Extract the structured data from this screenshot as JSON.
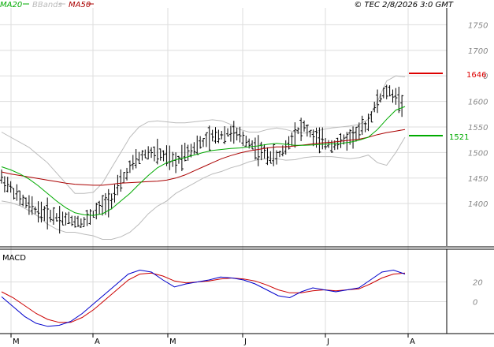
{
  "legend": {
    "ma20": {
      "label": "MA20",
      "color": "#00aa00"
    },
    "bbands": {
      "label": "BBands",
      "color": "#bbbbbb"
    },
    "ma50": {
      "label": "MA50",
      "color": "#aa0000"
    }
  },
  "copyright": "© TEC 2/8/2026 3:0 GMT",
  "macd_label": "MACD",
  "level_labels": {
    "resistance": "1646",
    "support": "1521"
  },
  "colors": {
    "candle": "#000000",
    "resistance": "#dd0000",
    "support": "#00aa00",
    "macd_line": "#0000cc",
    "signal_line": "#cc0000",
    "grid": "#dddddd"
  },
  "chart_data": [
    {
      "type": "bar",
      "title": "",
      "ylim": [
        1320,
        1780
      ],
      "y_ticks": [
        "1750",
        "1700",
        "1650",
        "1600",
        "1550",
        "1500",
        "1450",
        "1400"
      ],
      "x_ticks": [
        "M",
        "A",
        "M",
        "J",
        "J",
        "A"
      ],
      "grid": true,
      "series": [
        {
          "name": "MA20",
          "values": [
            1472,
            1466,
            1458,
            1448,
            1435,
            1420,
            1405,
            1392,
            1382,
            1378,
            1377,
            1380,
            1390,
            1405,
            1420,
            1438,
            1455,
            1470,
            1480,
            1486,
            1490,
            1495,
            1500,
            1504,
            1506,
            1508,
            1509,
            1511,
            1513,
            1516,
            1518,
            1516,
            1514,
            1514,
            1515,
            1516,
            1517,
            1518,
            1520,
            1524,
            1530,
            1545,
            1565,
            1583,
            1590
          ]
        },
        {
          "name": "MA50",
          "values": [
            1462,
            1458,
            1455,
            1452,
            1449,
            1446,
            1443,
            1440,
            1438,
            1437,
            1436,
            1436,
            1438,
            1440,
            1441,
            1442,
            1443,
            1444,
            1446,
            1450,
            1456,
            1464,
            1472,
            1480,
            1488,
            1494,
            1499,
            1503,
            1506,
            1509,
            1511,
            1511,
            1513,
            1515,
            1517,
            1519,
            1520,
            1522,
            1524,
            1526,
            1530,
            1535,
            1539,
            1542,
            1545
          ]
        },
        {
          "name": "BBands",
          "values": [
            1540,
            1530,
            1520,
            1510,
            1495,
            1480,
            1460,
            1440,
            1420,
            1420,
            1422,
            1440,
            1470,
            1500,
            1530,
            1550,
            1560,
            1562,
            1560,
            1558,
            1558,
            1560,
            1562,
            1564,
            1562,
            1555,
            1545,
            1540,
            1540,
            1545,
            1548,
            1545,
            1540,
            1538,
            1540,
            1545,
            1548,
            1550,
            1552,
            1555,
            1565,
            1600,
            1640,
            1650,
            1648
          ]
        },
        {
          "name": "BBands",
          "values": [
            1405,
            1402,
            1396,
            1386,
            1375,
            1360,
            1350,
            1344,
            1344,
            1340,
            1337,
            1330,
            1330,
            1335,
            1344,
            1360,
            1380,
            1395,
            1405,
            1420,
            1430,
            1440,
            1450,
            1458,
            1463,
            1470,
            1475,
            1482,
            1486,
            1488,
            1488,
            1485,
            1486,
            1490,
            1492,
            1492,
            1492,
            1490,
            1488,
            1490,
            1495,
            1480,
            1475,
            1500,
            1530
          ]
        },
        {
          "name": "",
          "values": [
            1450,
            1430,
            1410,
            1395,
            1385,
            1380,
            1374,
            1370,
            1366,
            1364,
            1380,
            1395,
            1410,
            1440,
            1470,
            1490,
            1500,
            1498,
            1490,
            1480,
            1500,
            1510,
            1520,
            1530,
            1535,
            1540,
            1530,
            1520,
            1505,
            1495,
            1490,
            1510,
            1540,
            1550,
            1530,
            1520,
            1515,
            1520,
            1530,
            1540,
            1560,
            1600,
            1620,
            1610,
            1590
          ]
        }
      ]
    },
    {
      "type": "line",
      "title": "MACD",
      "ylim": [
        -30,
        50
      ],
      "y_ticks": [
        "20",
        "0"
      ],
      "series": [
        {
          "name": "",
          "values": [
            5,
            -5,
            -15,
            -22,
            -25,
            -24,
            -20,
            -12,
            -2,
            8,
            18,
            28,
            32,
            30,
            22,
            15,
            18,
            20,
            22,
            25,
            24,
            22,
            18,
            12,
            6,
            4,
            10,
            14,
            12,
            10,
            12,
            14,
            22,
            30,
            32,
            28
          ]
        },
        {
          "name": "",
          "values": [
            10,
            4,
            -4,
            -12,
            -18,
            -21,
            -21,
            -16,
            -8,
            2,
            12,
            22,
            28,
            29,
            26,
            21,
            19,
            20,
            21,
            23,
            24,
            23,
            21,
            17,
            12,
            9,
            9,
            11,
            12,
            11,
            12,
            13,
            18,
            24,
            28,
            29
          ]
        }
      ]
    }
  ]
}
